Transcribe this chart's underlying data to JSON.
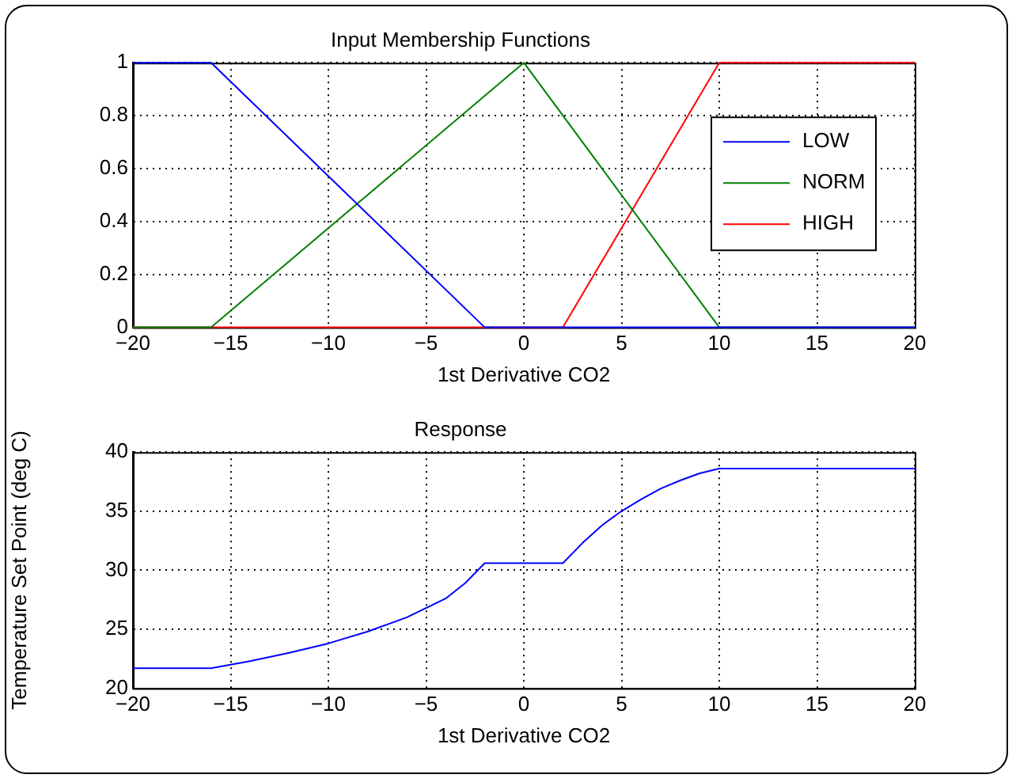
{
  "chart_data": [
    {
      "type": "line",
      "title": "Input Membership Functions",
      "xlabel": "1st Derivative CO2",
      "xlim": [
        -20,
        20
      ],
      "xticks": [
        -20,
        -15,
        -10,
        -5,
        0,
        5,
        10,
        15,
        20
      ],
      "ylim": [
        0,
        1
      ],
      "yticks": [
        0,
        0.2,
        0.4,
        0.6,
        0.8,
        1
      ],
      "grid": true,
      "legend": "top right",
      "marker": "none",
      "line_style": "solid",
      "series": [
        {
          "name": "LOW",
          "color": "#0000ff",
          "x": [
            -20,
            -16,
            -2,
            20
          ],
          "values": [
            1,
            1,
            0,
            0
          ]
        },
        {
          "name": "NORM",
          "color": "#008000",
          "x": [
            -20,
            -16,
            0,
            10,
            20
          ],
          "values": [
            0,
            0,
            1,
            0,
            0
          ]
        },
        {
          "name": "HIGH",
          "color": "#ff0000",
          "x": [
            -20,
            2,
            10,
            20
          ],
          "values": [
            0,
            0,
            1,
            1
          ]
        }
      ]
    },
    {
      "type": "line",
      "title": "Response",
      "xlabel": "1st Derivative CO2",
      "ylabel": "Temperature Set Point (deg C)",
      "xlim": [
        -20,
        20
      ],
      "xticks": [
        -20,
        -15,
        -10,
        -5,
        0,
        5,
        10,
        15,
        20
      ],
      "ylim": [
        20,
        40
      ],
      "yticks": [
        20,
        25,
        30,
        35,
        40
      ],
      "grid": true,
      "marker": "none",
      "line_style": "solid",
      "series": [
        {
          "color": "#0000ff",
          "x": [
            -20,
            -16,
            -14,
            -12,
            -10,
            -8,
            -6,
            -4,
            -3,
            -2,
            2,
            3,
            4,
            5,
            6,
            7,
            8,
            9,
            10,
            20
          ],
          "values": [
            21.7,
            21.7,
            22.3,
            23,
            23.8,
            24.8,
            26,
            27.6,
            28.9,
            30.6,
            30.6,
            32.3,
            33.8,
            35,
            36,
            36.9,
            37.6,
            38.2,
            38.6,
            38.6
          ]
        }
      ]
    }
  ]
}
